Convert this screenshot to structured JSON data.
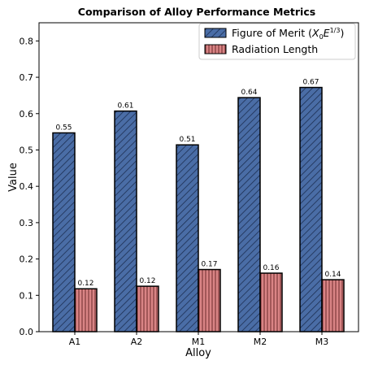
{
  "chart_data": {
    "type": "bar",
    "title": "Comparison of Alloy Performance Metrics",
    "xlabel": "Alloy",
    "ylabel": "Value",
    "ylim": [
      0,
      0.85
    ],
    "yticks": [
      "0.0",
      "0.1",
      "0.2",
      "0.3",
      "0.4",
      "0.5",
      "0.6",
      "0.7",
      "0.8"
    ],
    "categories": [
      "A1",
      "A2",
      "M1",
      "M2",
      "M3"
    ],
    "series": [
      {
        "name": "Figure of Merit",
        "values": [
          0.547,
          0.607,
          0.514,
          0.644,
          0.672
        ],
        "labels": [
          "0.55",
          "0.61",
          "0.51",
          "0.64",
          "0.67"
        ],
        "color": "#4a6da6",
        "hatch": "diagonal"
      },
      {
        "name": "Radiation Length",
        "values": [
          0.118,
          0.125,
          0.171,
          0.161,
          0.143
        ],
        "labels": [
          "0.12",
          "0.12",
          "0.17",
          "0.16",
          "0.14"
        ],
        "color": "#d98485",
        "hatch": "vertical"
      }
    ],
    "legend": {
      "placement": "top-right",
      "entries": [
        "Figure of Merit (X₀E^{1/3})",
        "Radiation Length"
      ]
    },
    "grid": false
  }
}
